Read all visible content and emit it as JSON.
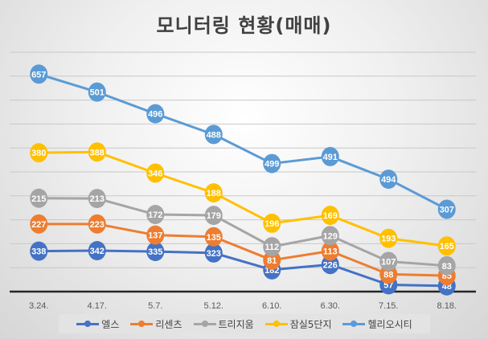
{
  "chart_data": {
    "type": "line",
    "stacked": true,
    "title": "모니터링 현황(매매)",
    "categories": [
      "3.24.",
      "4.17.",
      "5.7.",
      "5.12.",
      "6.10.",
      "6.30.",
      "7.15.",
      "8.18."
    ],
    "ylim": [
      0,
      2000
    ],
    "y_step": 200,
    "y_tick_labels_visible": false,
    "grid": true,
    "legend": "bottom",
    "data_labels": true,
    "series": [
      {
        "name": "엘스",
        "color": "#4472C4",
        "values": [
          338,
          342,
          335,
          323,
          182,
          226,
          57,
          48
        ]
      },
      {
        "name": "리센츠",
        "color": "#ED7D31",
        "values": [
          227,
          223,
          137,
          135,
          81,
          113,
          88,
          85
        ]
      },
      {
        "name": "트리지움",
        "color": "#A5A5A5",
        "values": [
          215,
          213,
          172,
          179,
          112,
          129,
          107,
          83
        ]
      },
      {
        "name": "잠실5단지",
        "color": "#FFC000",
        "values": [
          380,
          388,
          346,
          188,
          196,
          169,
          193,
          165
        ]
      },
      {
        "name": "헬리오시티",
        "color": "#5B9BD5",
        "values": [
          657,
          501,
          496,
          488,
          499,
          491,
          494,
          307
        ]
      }
    ]
  }
}
